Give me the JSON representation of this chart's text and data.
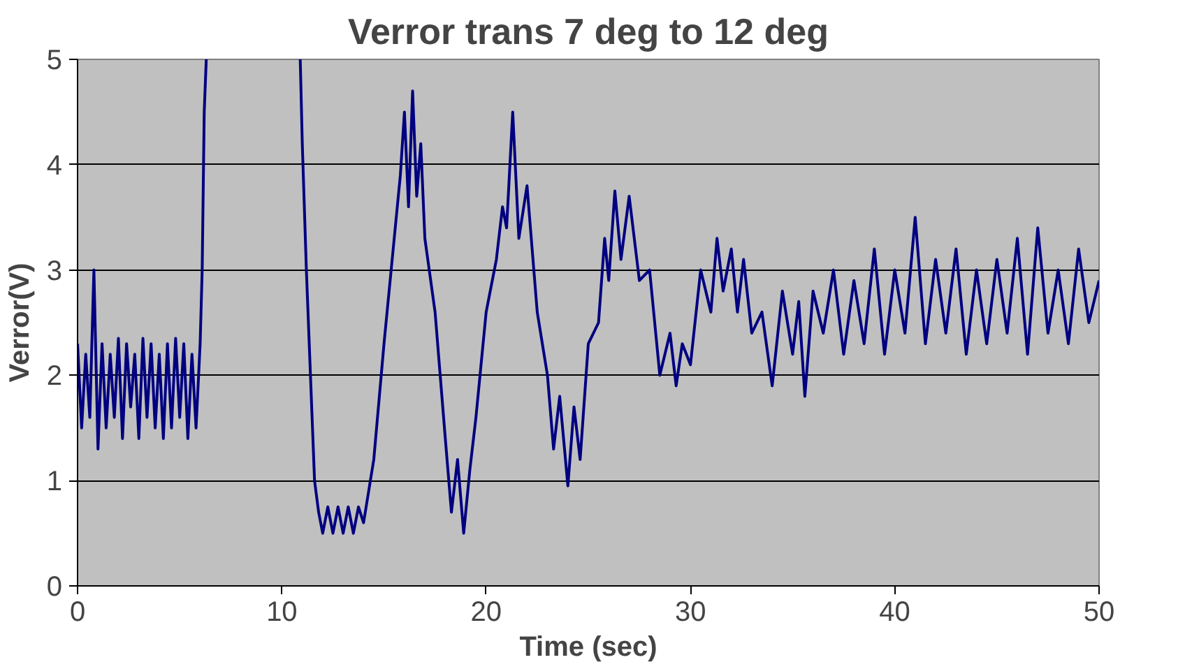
{
  "chart_data": {
    "type": "line",
    "title": "Verror trans 7 deg to 12 deg",
    "xlabel": "Time (sec)",
    "ylabel": "Verror(V)",
    "xlim": [
      0,
      50
    ],
    "ylim": [
      0,
      5
    ],
    "xticks": [
      0,
      10,
      20,
      30,
      40,
      50
    ],
    "yticks": [
      0,
      1,
      2,
      3,
      4,
      5
    ],
    "grid": "y",
    "marker": "none",
    "line_style": "solid",
    "series": [
      {
        "color": "#000080",
        "x": [
          0,
          0.2,
          0.4,
          0.6,
          0.8,
          1.0,
          1.2,
          1.4,
          1.6,
          1.8,
          2.0,
          2.2,
          2.4,
          2.6,
          2.8,
          3.0,
          3.2,
          3.4,
          3.6,
          3.8,
          4.0,
          4.2,
          4.4,
          4.6,
          4.8,
          5.0,
          5.2,
          5.4,
          5.6,
          5.8,
          6.0,
          6.1,
          6.2,
          6.3,
          8.5,
          10.9,
          11.0,
          11.2,
          11.4,
          11.6,
          11.8,
          12,
          12.25,
          12.5,
          12.75,
          13,
          13.25,
          13.5,
          13.75,
          14,
          14.5,
          15,
          15.5,
          15.8,
          16,
          16.2,
          16.4,
          16.6,
          16.8,
          17,
          17.5,
          18,
          18.3,
          18.6,
          18.9,
          19.2,
          19.5,
          20,
          20.5,
          20.8,
          21,
          21.3,
          21.6,
          22,
          22.5,
          23,
          23.3,
          23.6,
          24,
          24.3,
          24.6,
          25,
          25.5,
          25.8,
          26,
          26.3,
          26.6,
          27,
          27.5,
          28,
          28.5,
          29,
          29.3,
          29.6,
          30,
          30.5,
          31,
          31.3,
          31.6,
          32,
          32.3,
          32.6,
          33,
          33.5,
          34,
          34.5,
          35,
          35.3,
          35.6,
          36,
          36.5,
          37,
          37.5,
          38,
          38.5,
          39,
          39.5,
          40,
          40.5,
          41,
          41.5,
          42,
          42.5,
          43,
          43.5,
          44,
          44.5,
          45,
          45.5,
          46,
          46.5,
          47,
          47.5,
          48,
          48.5,
          49,
          49.5,
          50
        ],
        "values": [
          2.3,
          1.5,
          2.2,
          1.6,
          3.0,
          1.3,
          2.3,
          1.5,
          2.2,
          1.6,
          2.35,
          1.4,
          2.3,
          1.7,
          2.2,
          1.4,
          2.35,
          1.6,
          2.3,
          1.5,
          2.2,
          1.4,
          2.3,
          1.5,
          2.35,
          1.6,
          2.3,
          1.4,
          2.2,
          1.5,
          2.3,
          3.0,
          4.5,
          5,
          null,
          5,
          4.2,
          3.0,
          2.0,
          1.0,
          0.7,
          0.5,
          0.75,
          0.5,
          0.75,
          0.5,
          0.75,
          0.5,
          0.75,
          0.6,
          1.2,
          2.3,
          3.3,
          3.9,
          4.5,
          3.6,
          4.7,
          3.7,
          4.2,
          3.3,
          2.6,
          1.4,
          0.7,
          1.2,
          0.5,
          1.1,
          1.6,
          2.6,
          3.1,
          3.6,
          3.4,
          4.5,
          3.3,
          3.8,
          2.6,
          2.0,
          1.3,
          1.8,
          0.95,
          1.7,
          1.2,
          2.3,
          2.5,
          3.3,
          2.9,
          3.75,
          3.1,
          3.7,
          2.9,
          3.0,
          2.0,
          2.4,
          1.9,
          2.3,
          2.1,
          3.0,
          2.6,
          3.3,
          2.8,
          3.2,
          2.6,
          3.1,
          2.4,
          2.6,
          1.9,
          2.8,
          2.2,
          2.7,
          1.8,
          2.8,
          2.4,
          3.0,
          2.2,
          2.9,
          2.3,
          3.2,
          2.2,
          3.0,
          2.4,
          3.5,
          2.3,
          3.1,
          2.4,
          3.2,
          2.2,
          3.0,
          2.3,
          3.1,
          2.4,
          3.3,
          2.2,
          3.4,
          2.4,
          3.0,
          2.3,
          3.2,
          2.5,
          2.9
        ]
      }
    ]
  }
}
